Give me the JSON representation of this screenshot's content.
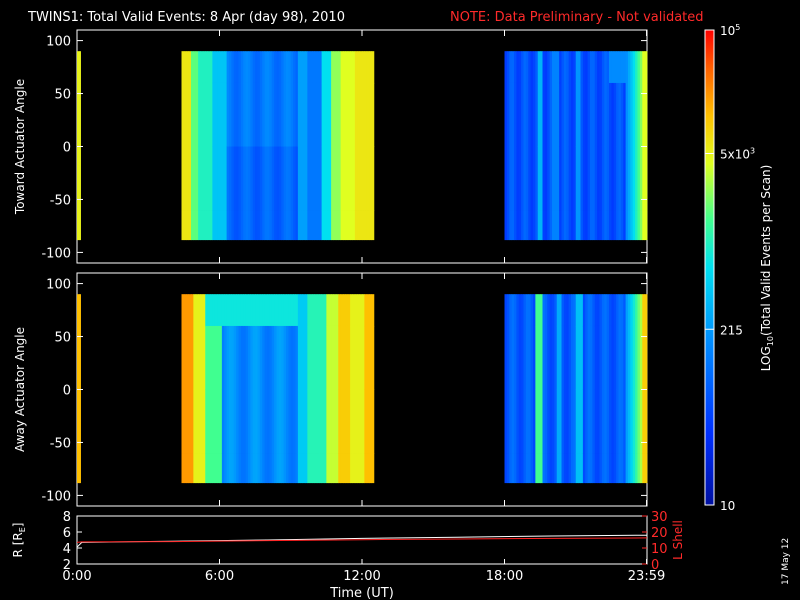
{
  "header": {
    "title": "TWINS1: Total Valid Events:  8 Apr (day  98), 2010",
    "note": "NOTE: Data Preliminary - Not validated"
  },
  "footer": {
    "stamp": "17 May 12"
  },
  "chart_data": [
    {
      "type": "heatmap",
      "name": "toward-panel",
      "ylabel": "Toward Actuator Angle",
      "ylim": [
        -110,
        110
      ],
      "yticks": [
        "100",
        "50",
        "0",
        "-50",
        "-100"
      ],
      "ytick_values": [
        100,
        50,
        0,
        -50,
        -100
      ],
      "xlim": [
        0,
        24
      ],
      "xticks": [
        "0:00",
        "6:00",
        "12:00",
        "18:00",
        "23:59"
      ],
      "xtick_values": [
        0,
        6,
        12,
        18,
        23.98
      ],
      "angle_range": [
        -88,
        90
      ],
      "segments": [
        {
          "start": 0,
          "end": 0.15,
          "level": 0.74
        },
        {
          "start": 4.4,
          "end": 12.5,
          "profile": "toward-mid"
        },
        {
          "start": 18.0,
          "end": 23.8,
          "profile": "toward-late"
        },
        {
          "start": 23.8,
          "end": 24.0,
          "level": 0.72
        }
      ]
    },
    {
      "type": "heatmap",
      "name": "away-panel",
      "ylabel": "Away Actuator Angle",
      "ylim": [
        -110,
        110
      ],
      "yticks": [
        "100",
        "50",
        "0",
        "-50",
        "-100"
      ],
      "ytick_values": [
        100,
        50,
        0,
        -50,
        -100
      ],
      "xlim": [
        0,
        24
      ],
      "xticks": [
        "0:00",
        "6:00",
        "12:00",
        "18:00",
        "23:59"
      ],
      "xtick_values": [
        0,
        6,
        12,
        18,
        23.98
      ],
      "angle_range": [
        -88,
        90
      ],
      "segments": [
        {
          "start": 0,
          "end": 0.15,
          "level": 0.82
        },
        {
          "start": 4.4,
          "end": 12.5,
          "profile": "away-mid"
        },
        {
          "start": 18.0,
          "end": 23.8,
          "profile": "away-late"
        },
        {
          "start": 23.8,
          "end": 24.0,
          "level": 0.8
        }
      ]
    },
    {
      "type": "line",
      "name": "ephemeris-panel",
      "ylabel": "R [R",
      "ylabel_sub": "E",
      "ylabel_end": "]",
      "ylabel_right": "L Shell",
      "ylim": [
        2,
        8
      ],
      "yticks": [
        "8",
        "6",
        "4",
        "2"
      ],
      "ytick_values": [
        8,
        6,
        4,
        2
      ],
      "ylim_right": [
        0,
        30
      ],
      "yticks_right": [
        "30",
        "20",
        "10",
        "0"
      ],
      "ytick_values_right": [
        30,
        20,
        10,
        0
      ],
      "xlim": [
        0,
        24
      ],
      "xlabel": "Time (UT)",
      "xticks": [
        "0:00",
        "6:00",
        "12:00",
        "18:00",
        "23:59"
      ],
      "xtick_values": [
        0,
        6,
        12,
        18,
        23.98
      ],
      "series": [
        {
          "name": "R",
          "color": "#ffffff",
          "x": [
            0,
            0.2,
            4,
            8,
            12,
            16,
            20,
            24
          ],
          "y": [
            4.1,
            4.7,
            4.85,
            5.0,
            5.2,
            5.35,
            5.5,
            5.6
          ]
        },
        {
          "name": "L Shell",
          "color": "#ff2020",
          "x": [
            0,
            0.2,
            4,
            8,
            12,
            16,
            20,
            24
          ],
          "y": [
            13.5,
            13.8,
            14.0,
            14.6,
            15.2,
            15.6,
            16.0,
            16.3
          ]
        }
      ]
    },
    {
      "type": "colorbar",
      "name": "colorbar",
      "label": "LOG",
      "label_sub": "10",
      "label_rest": "(Total Valid Events per Scan)",
      "ticks": [
        {
          "base": "10",
          "exp": "5",
          "level": 1.0
        },
        {
          "base": "5x10",
          "exp": "3",
          "level": 0.74
        },
        {
          "base": "215",
          "exp": "",
          "level": 0.37
        },
        {
          "base": "10",
          "exp": "",
          "level": 0.0
        }
      ]
    }
  ]
}
